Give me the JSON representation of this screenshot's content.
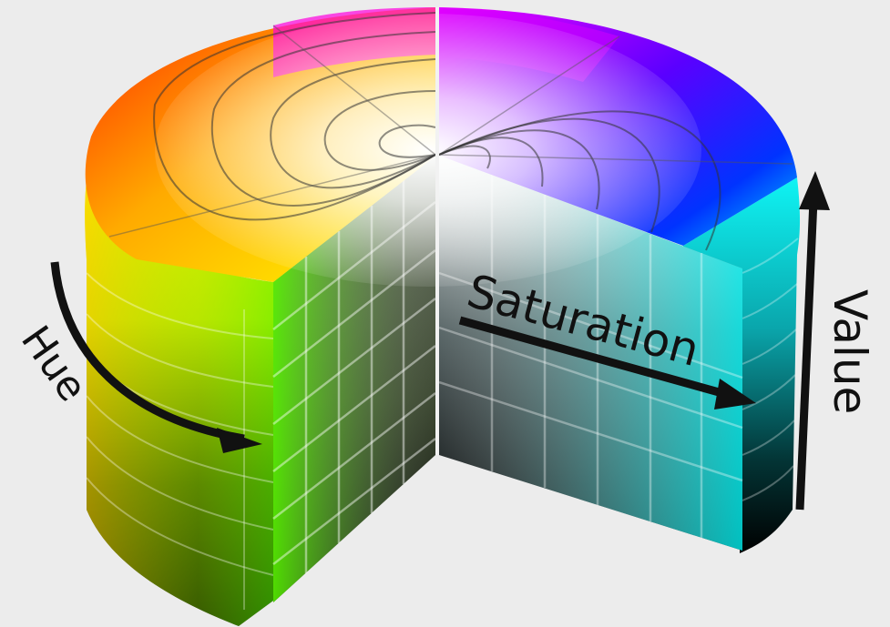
{
  "diagram": {
    "labels": {
      "hue": "Hue",
      "saturation": "Saturation",
      "value": "Value"
    },
    "colors": {
      "background": "#ececec",
      "arrow": "#111111",
      "label": "#111111",
      "red": "#ff0000",
      "yellow": "#ffff00",
      "green": "#00ff00",
      "cyan": "#00ffff",
      "blue": "#0000ff",
      "magenta": "#ff00ff",
      "white": "#ffffff",
      "black": "#000000"
    }
  }
}
